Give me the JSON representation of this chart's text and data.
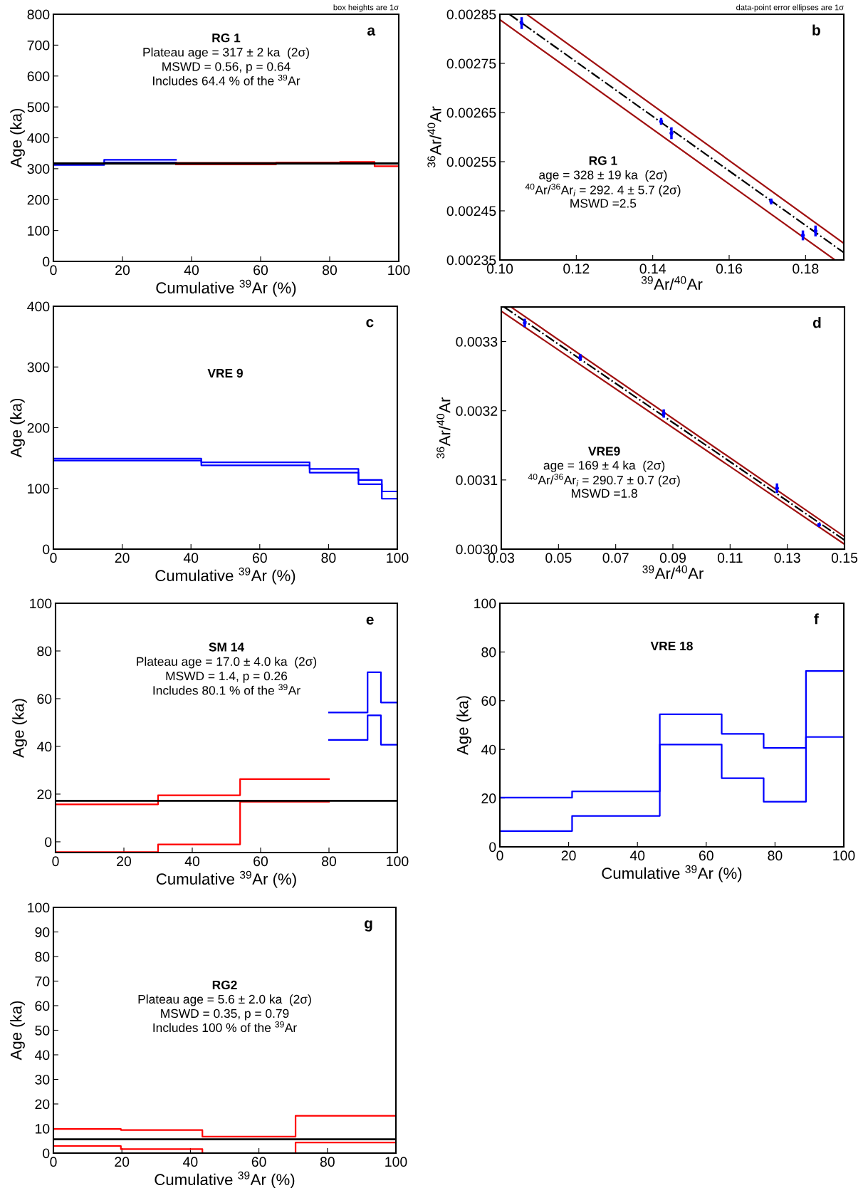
{
  "chart_data": [
    {
      "type": "step",
      "subtitle": "box heights are 1σ",
      "xlabel": "Cumulative $^{39}$Ar (%)",
      "ylabel": "Age (ka)",
      "xlim": [
        0,
        100
      ],
      "xticks": [
        0,
        20,
        40,
        60,
        80,
        100
      ],
      "ylim": [
        0,
        800
      ],
      "yticks": [
        0,
        100,
        200,
        300,
        400,
        500,
        600,
        700,
        800
      ],
      "grid": false,
      "legend": false,
      "annotations": [
        "a",
        "RG 1",
        "Plateau age = 317 ± 2 ka  (2σ)",
        "MSWD = 0.56, p = 0.64",
        "Includes 64.4 % of the $^{39}$Ar"
      ],
      "ref_lines": [
        {
          "axis": "y",
          "value": 317,
          "color": "#000000"
        }
      ],
      "series": [
        {
          "color": "#0000ff",
          "x": [
            0,
            14.7,
            35.5
          ],
          "values": [
            318,
            329,
            329
          ]
        },
        {
          "color": "#0000ff",
          "x": [
            0,
            14.7,
            35.5
          ],
          "values": [
            312,
            320,
            320
          ]
        },
        {
          "color": "#ff0000",
          "x": [
            35.5,
            64.5,
            83,
            93,
            100
          ],
          "values": [
            319,
            320,
            322,
            317,
            317
          ]
        },
        {
          "color": "#ff0000",
          "x": [
            35.5,
            64.5,
            83,
            93,
            100
          ],
          "values": [
            314,
            316,
            317,
            308,
            308
          ]
        }
      ]
    },
    {
      "type": "scatter",
      "subtitle": "data-point error ellipses are 1σ",
      "xlabel": "$^{39}$Ar/$^{40}$Ar",
      "ylabel": "$^{36}$Ar/$^{40}$Ar",
      "xlim": [
        0.1,
        0.19
      ],
      "xticks": [
        {
          "value": 0.1,
          "label": "0.10"
        },
        0.12,
        0.14,
        0.16,
        0.18
      ],
      "ylim": [
        0.00235,
        0.00285
      ],
      "yticks": [
        0.00235,
        0.00245,
        0.00255,
        0.00265,
        0.00275,
        0.00285
      ],
      "grid": false,
      "legend": false,
      "annotations": [
        "b",
        "RG 1",
        "age = 328 ± 19 ka  (2σ)",
        "$^{40}$Ar/$^{36}$Ar$_{i}$ = 292. 4 ± 5.7 (2σ)",
        "MSWD =2.5"
      ],
      "series": [
        {
          "type": "line",
          "color": "#a01010",
          "line_style": "solid",
          "x": [
            0.107,
            0.19
          ],
          "values": [
            0.00285,
            0.002384
          ]
        },
        {
          "type": "line",
          "color": "#a01010",
          "line_style": "solid",
          "x": [
            0.1,
            0.1877
          ],
          "values": [
            0.002839,
            0.00235
          ]
        },
        {
          "type": "line",
          "color": "#000000",
          "line_style": "dashdot",
          "x": [
            0.1025,
            0.19
          ],
          "values": [
            0.00285,
            0.002365
          ]
        },
        {
          "type": "scatter",
          "color": "#0000ff",
          "marker": "circle",
          "x": [
            0.1057,
            0.1422,
            0.1449,
            0.171,
            0.1793,
            0.1826
          ],
          "values": [
            0.002832,
            0.002632,
            0.002608,
            0.002469,
            0.0024,
            0.002409
          ],
          "errors": [
            1.2e-05,
            7e-06,
            1.2e-05,
            6e-06,
            1e-05,
            1.1e-05
          ]
        }
      ]
    },
    {
      "type": "step",
      "xlabel": "Cumulative $^{39}$Ar (%)",
      "ylabel": "Age (ka)",
      "xlim": [
        0,
        100
      ],
      "xticks": [
        0,
        20,
        40,
        60,
        80,
        100
      ],
      "ylim": [
        0,
        400
      ],
      "yticks": [
        0,
        100,
        200,
        300,
        400
      ],
      "grid": false,
      "legend": false,
      "annotations": [
        "c",
        "VRE 9"
      ],
      "series": [
        {
          "color": "#0000ff",
          "x": [
            0,
            43,
            74.5,
            88.7,
            95.5,
            100
          ],
          "values": [
            149,
            143,
            132,
            114,
            95,
            95
          ]
        },
        {
          "color": "#0000ff",
          "x": [
            0,
            43,
            74.5,
            88.7,
            95.5,
            100
          ],
          "values": [
            146,
            138,
            126,
            107,
            83,
            83
          ]
        }
      ]
    },
    {
      "type": "scatter",
      "xlabel": "$^{39}$Ar/$^{40}$Ar",
      "ylabel": "$^{36}$Ar/$^{40}$Ar",
      "xlim": [
        0.03,
        0.15
      ],
      "xticks": [
        0.03,
        0.05,
        0.07,
        0.09,
        0.11,
        0.13,
        0.15
      ],
      "ylim": [
        0.003,
        0.00335
      ],
      "yticks": [
        {
          "value": 0.003,
          "label": "0.0030"
        },
        0.0031,
        0.0032,
        0.0033
      ],
      "grid": false,
      "legend": false,
      "annotations": [
        "d",
        "VRE9",
        "age = 169 ± 4 ka  (2σ)",
        "$^{40}$Ar/$^{36}$Ar$_{i}$ = 290.7 ± 0.7 (2σ)",
        "MSWD =1.8"
      ],
      "series": [
        {
          "type": "line",
          "color": "#a01010",
          "line_style": "solid",
          "x": [
            0.0334,
            0.15
          ],
          "values": [
            0.00335,
            0.003018
          ]
        },
        {
          "type": "line",
          "color": "#a01010",
          "line_style": "solid",
          "x": [
            0.03,
            0.15
          ],
          "values": [
            0.003344,
            0.003007
          ]
        },
        {
          "type": "line",
          "color": "#000000",
          "line_style": "dashdot",
          "x": [
            0.031,
            0.15
          ],
          "values": [
            0.00335,
            0.003013
          ]
        },
        {
          "type": "scatter",
          "color": "#0000ff",
          "marker": "circle",
          "x": [
            0.0382,
            0.0576,
            0.0868,
            0.1264,
            0.1411
          ],
          "values": [
            0.003327,
            0.003277,
            0.003196,
            0.003088,
            0.003035
          ],
          "errors": [
            6e-06,
            5e-06,
            6e-06,
            7e-06,
            3e-06
          ]
        }
      ]
    },
    {
      "type": "step",
      "xlabel": "Cumulative $^{39}$Ar (%)",
      "ylabel": "Age (ka)",
      "xlim": [
        0,
        100
      ],
      "xticks": [
        0,
        20,
        40,
        60,
        80,
        100
      ],
      "ylim": [
        -4.5,
        100
      ],
      "yticks": [
        0,
        20,
        40,
        60,
        80,
        100
      ],
      "grid": false,
      "legend": false,
      "annotations": [
        "e",
        "SM 14",
        "Plateau age = 17.0 ± 4.0 ka  (2σ)",
        "MSWD = 1.4, p = 0.26",
        "Includes 80.1 % of the $^{39}$Ar"
      ],
      "ref_lines": [
        {
          "axis": "y",
          "value": 17.2,
          "color": "#000000"
        }
      ],
      "series": [
        {
          "color": "#ff0000",
          "x": [
            0,
            30,
            54,
            80
          ],
          "values": [
            15.7,
            19.5,
            26.3,
            26.3
          ]
        },
        {
          "color": "#ff0000",
          "x": [
            0,
            30,
            54,
            80
          ],
          "values": [
            -4.3,
            -1.1,
            16.8,
            16.8
          ]
        },
        {
          "color": "#0000ff",
          "x": [
            80,
            91.3,
            95.2,
            100
          ],
          "values": [
            54.2,
            71.1,
            58.4,
            58.4
          ]
        },
        {
          "color": "#0000ff",
          "x": [
            80,
            91.3,
            95.2,
            100
          ],
          "values": [
            42.7,
            53,
            40.7,
            40.7
          ]
        }
      ]
    },
    {
      "type": "step",
      "xlabel": "Cumulative $^{39}$Ar (%)",
      "ylabel": "Age (ka)",
      "xlim": [
        0,
        100
      ],
      "xticks": [
        0,
        20,
        40,
        60,
        80,
        100
      ],
      "ylim": [
        0,
        100
      ],
      "yticks": [
        0,
        20,
        40,
        60,
        80,
        100
      ],
      "grid": false,
      "legend": false,
      "annotations": [
        "f",
        "VRE 18"
      ],
      "series": [
        {
          "color": "#0000ff",
          "x": [
            0,
            21,
            46.5,
            64.5,
            76.7,
            89,
            100
          ],
          "values": [
            20.2,
            22.8,
            54.4,
            46.4,
            40.6,
            72.2,
            72.2
          ]
        },
        {
          "color": "#0000ff",
          "x": [
            0,
            21,
            46.5,
            64.5,
            76.7,
            89,
            100
          ],
          "values": [
            6.5,
            12.7,
            42,
            28.2,
            18.5,
            45.1,
            45.1
          ]
        }
      ]
    },
    {
      "type": "step",
      "xlabel": "Cumulative $^{39}$Ar (%)",
      "ylabel": "Age (ka)",
      "xlim": [
        0,
        100
      ],
      "xticks": [
        0,
        20,
        40,
        60,
        80,
        100
      ],
      "ylim": [
        0,
        100
      ],
      "yticks": [
        0,
        10,
        20,
        30,
        40,
        50,
        60,
        70,
        80,
        90,
        100
      ],
      "grid": false,
      "legend": false,
      "annotations": [
        "g",
        "RG2",
        "Plateau age = 5.6 ± 2.0 ka  (2σ)",
        "MSWD = 0.35, p = 0.79",
        "Includes 100 % of the $^{39}$Ar"
      ],
      "ref_lines": [
        {
          "axis": "y",
          "value": 5.6,
          "color": "#000000"
        }
      ],
      "series": [
        {
          "color": "#ff0000",
          "x": [
            0,
            19.7,
            43.5,
            70.7,
            100
          ],
          "values": [
            9.8,
            9.4,
            6.7,
            15.2,
            15.2
          ]
        },
        {
          "color": "#ff0000",
          "x": [
            0,
            19.7,
            43.5,
            70.7,
            100
          ],
          "values": [
            2.9,
            1.6,
            0,
            4.3,
            4.3
          ]
        }
      ]
    }
  ]
}
